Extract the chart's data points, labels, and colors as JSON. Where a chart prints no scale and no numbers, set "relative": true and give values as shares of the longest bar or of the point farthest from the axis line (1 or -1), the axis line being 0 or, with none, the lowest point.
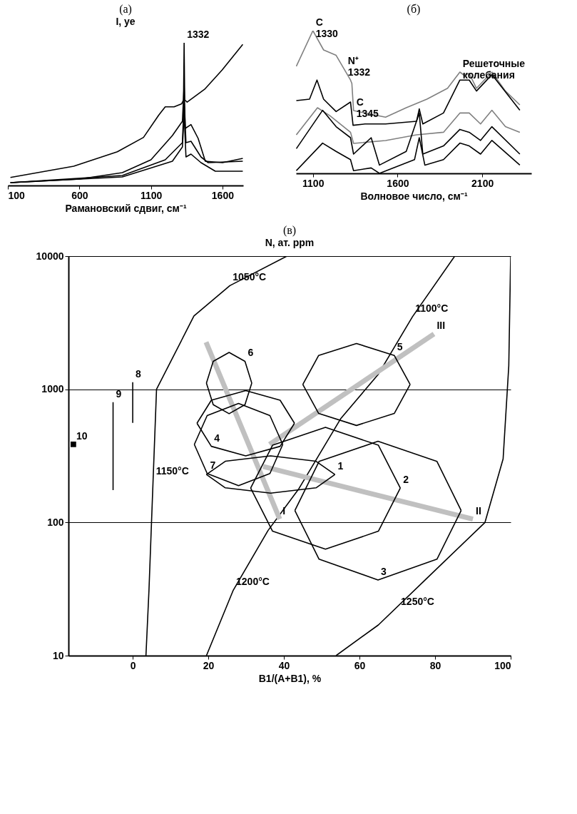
{
  "chart_data": [
    {
      "type": "line",
      "title": "(a)",
      "xlabel": "Рамановский сдвиг, см⁻¹",
      "ylabel": "I, ye",
      "relative": true,
      "xlim": [
        100,
        1745
      ],
      "xticks": [
        100,
        600,
        1100,
        1600
      ],
      "annotations": [
        {
          "text": "1332",
          "x": 1332,
          "y": 1.0
        }
      ],
      "series": [
        {
          "color": "#000000",
          "x": [
            118,
            560,
            865,
            1048,
            1155,
            1200,
            1262,
            1315,
            1328,
            1332,
            1336,
            1353,
            1475,
            1597,
            1742
          ],
          "values": [
            0.056,
            0.135,
            0.236,
            0.337,
            0.494,
            0.551,
            0.551,
            0.573,
            0.6,
            1.0,
            0.6,
            0.584,
            0.674,
            0.809,
            0.989
          ]
        },
        {
          "color": "#000000",
          "x": [
            118,
            600,
            900,
            1100,
            1250,
            1320,
            1332,
            1340,
            1380,
            1430,
            1480,
            1600,
            1742
          ],
          "values": [
            0.02,
            0.045,
            0.09,
            0.18,
            0.35,
            0.45,
            0.7,
            0.4,
            0.427,
            0.33,
            0.17,
            0.16,
            0.19
          ]
        },
        {
          "color": "#000000",
          "x": [
            118,
            900,
            1200,
            1320,
            1332,
            1345,
            1380,
            1450,
            1500,
            1742
          ],
          "values": [
            0.02,
            0.07,
            0.18,
            0.3,
            0.6,
            0.3,
            0.31,
            0.2,
            0.16,
            0.17
          ]
        },
        {
          "color": "#000000",
          "x": [
            118,
            900,
            1250,
            1320,
            1332,
            1345,
            1380,
            1450,
            1550,
            1742
          ],
          "values": [
            0.02,
            0.06,
            0.17,
            0.27,
            0.5,
            0.2,
            0.22,
            0.16,
            0.1,
            0.1
          ]
        }
      ]
    },
    {
      "type": "line",
      "title": "(б)",
      "xlabel": "Волновое число, см⁻¹",
      "relative": true,
      "xlim": [
        1000,
        2390
      ],
      "xticks": [
        1100,
        1600,
        2100
      ],
      "annotations": [
        {
          "text": "C 1330",
          "x": 1100,
          "y": 1.0
        },
        {
          "text": "N⁺ 1332",
          "x": 1290,
          "y": 0.73
        },
        {
          "text": "C 1345",
          "x": 1340,
          "y": 0.44
        },
        {
          "text": "Решеточные колебания",
          "x": 1968,
          "y": 0.71
        }
      ],
      "series": [
        {
          "color": "#808080",
          "x": [
            1002,
            1100,
            1163,
            1237,
            1322,
            1330,
            1340,
            1407,
            1529,
            1651,
            1773,
            1895,
            1968,
            1990,
            2023,
            2066,
            2157,
            2237,
            2322
          ],
          "values": [
            0.75,
            1.0,
            0.865,
            0.827,
            0.654,
            0.63,
            0.44,
            0.423,
            0.394,
            0.46,
            0.52,
            0.596,
            0.71,
            0.69,
            0.7,
            0.596,
            0.71,
            0.577,
            0.48
          ]
        },
        {
          "color": "#000000",
          "x": [
            1002,
            1080,
            1124,
            1163,
            1237,
            1322,
            1337,
            1407,
            1529,
            1712,
            1728,
            1749,
            1871,
            1968,
            2023,
            2066,
            2157,
            2322
          ],
          "values": [
            0.51,
            0.52,
            0.654,
            0.52,
            0.433,
            0.5,
            0.337,
            0.346,
            0.346,
            0.365,
            0.452,
            0.346,
            0.423,
            0.654,
            0.654,
            0.577,
            0.692,
            0.442
          ]
        },
        {
          "color": "#808080",
          "x": [
            1002,
            1127,
            1200,
            1322,
            1340,
            1529,
            1712,
            1871,
            1968,
            2023,
            2090,
            2157,
            2237,
            2322
          ],
          "values": [
            0.27,
            0.46,
            0.404,
            0.288,
            0.21,
            0.23,
            0.27,
            0.288,
            0.423,
            0.423,
            0.346,
            0.442,
            0.327,
            0.288
          ]
        },
        {
          "color": "#000000",
          "x": [
            1002,
            1157,
            1237,
            1322,
            1340,
            1444,
            1493,
            1651,
            1728,
            1749,
            1871,
            1968,
            2023,
            2090,
            2157,
            2322
          ],
          "values": [
            0.173,
            0.442,
            0.327,
            0.25,
            0.135,
            0.25,
            0.058,
            0.154,
            0.423,
            0.135,
            0.192,
            0.308,
            0.288,
            0.231,
            0.327,
            0.135
          ]
        },
        {
          "color": "#000000",
          "x": [
            1002,
            1157,
            1237,
            1322,
            1340,
            1444,
            1493,
            1700,
            1728,
            1761,
            1871,
            1968,
            2023,
            2090,
            2157,
            2322
          ],
          "values": [
            0.019,
            0.212,
            0.154,
            0.096,
            0.019,
            0.038,
            0.0,
            0.096,
            0.25,
            0.058,
            0.096,
            0.212,
            0.192,
            0.135,
            0.231,
            0.058
          ]
        }
      ]
    },
    {
      "type": "line",
      "title": "(в)",
      "xlabel": "B1/(A+B1), %",
      "ylabel": "N, ат. ppm",
      "log": true,
      "grid": "y",
      "xlim": [
        -17,
        100
      ],
      "xticks": [
        0,
        20,
        40,
        60,
        80,
        100
      ],
      "ylim": [
        10,
        10000
      ],
      "yticks": [
        10,
        100,
        1000,
        10000
      ],
      "annotations": [
        {
          "text": "1050°C",
          "x": 25.7,
          "y": 6000
        },
        {
          "text": "1100°C",
          "x": 74,
          "y": 3500
        },
        {
          "text": "1150°C",
          "x": 5.4,
          "y": 211
        },
        {
          "text": "1200°C",
          "x": 26.6,
          "y": 31
        },
        {
          "text": "1250°C",
          "x": 70.2,
          "y": 22
        },
        {
          "text": "1",
          "x": 53.5,
          "y": 229
        },
        {
          "text": "2",
          "x": 70.8,
          "y": 181
        },
        {
          "text": "3",
          "x": 64.9,
          "y": 37
        },
        {
          "text": "4",
          "x": 20.8,
          "y": 373
        },
        {
          "text": "5",
          "x": 69.2,
          "y": 1795
        },
        {
          "text": "6",
          "x": 29.7,
          "y": 1622
        },
        {
          "text": "7",
          "x": 19.7,
          "y": 233
        },
        {
          "text": "8",
          "x": 0,
          "y": 1130
        },
        {
          "text": "9",
          "x": -5.2,
          "y": 800
        },
        {
          "text": "10",
          "x": -15.7,
          "y": 386
        },
        {
          "text": "I",
          "x": 38.9,
          "y": 106
        },
        {
          "text": "II",
          "x": 90,
          "y": 106
        },
        {
          "text": "III",
          "x": 79.7,
          "y": 2600
        }
      ],
      "series": [
        {
          "color": "#000000",
          "x": [
            3.5,
            4.3,
            5.4,
            6.3,
            16.2,
            25.7,
            40.8
          ],
          "values": [
            10,
            31,
            211,
            1000,
            3550,
            6000,
            10000
          ]
        },
        {
          "color": "#000000",
          "x": [
            19.5,
            26.6,
            35.8,
            44,
            55,
            65,
            74,
            85.2
          ],
          "values": [
            10,
            31,
            87,
            180,
            600,
            1300,
            3500,
            10000
          ]
        },
        {
          "color": "#000000",
          "x": [
            53.8,
            65,
            79,
            93.2,
            98,
            99.5,
            100
          ],
          "values": [
            10,
            17,
            41,
            100,
            300,
            1500,
            10000
          ]
        },
        {
          "color": "#c0c0c0",
          "x": [
            19.4,
            38.9
          ],
          "values": [
            2260,
            106
          ]
        },
        {
          "color": "#c0c0c0",
          "x": [
            34.5,
            90
          ],
          "values": [
            263,
            106
          ]
        },
        {
          "color": "#c0c0c0",
          "x": [
            36.2,
            79.7
          ],
          "values": [
            386,
            2600
          ]
        },
        {
          "color": "#000000",
          "x": [
            19.5,
            24.5,
            36.5,
            48.5,
            53.5
          ],
          "values": [
            229,
            288,
            316,
            288,
            229
          ]
        },
        {
          "color": "#000000",
          "x": [
            19.5,
            24.5,
            36.5,
            48.5,
            53.5
          ],
          "values": [
            229,
            182,
            166,
            182,
            229
          ]
        },
        {
          "color": "#000000",
          "x": [
            31.2,
            37,
            51,
            65,
            70.8
          ],
          "values": [
            181,
            380,
            518,
            380,
            181
          ]
        },
        {
          "color": "#000000",
          "x": [
            31.2,
            37,
            51,
            65,
            70.8
          ],
          "values": [
            181,
            86,
            63,
            86,
            181
          ]
        },
        {
          "color": "#000000",
          "x": [
            42.9,
            49.3,
            64.9,
            80.5,
            86.9
          ],
          "values": [
            123,
            287,
            407,
            287,
            123
          ]
        },
        {
          "color": "#000000",
          "x": [
            42.9,
            49.3,
            64.9,
            80.5,
            86.9
          ],
          "values": [
            123,
            53,
            37,
            53,
            123
          ]
        },
        {
          "color": "#000000",
          "x": [
            17,
            20.8,
            29.9,
            39,
            42.8
          ],
          "values": [
            556,
            828,
            977,
            828,
            556
          ]
        },
        {
          "color": "#000000",
          "x": [
            17,
            20.8,
            29.9,
            39,
            42.8
          ],
          "values": [
            556,
            373,
            316,
            373,
            556
          ]
        },
        {
          "color": "#000000",
          "x": [
            45,
            49.2,
            59.2,
            69.2,
            73.4
          ],
          "values": [
            1086,
            1795,
            2208,
            1795,
            1086
          ]
        },
        {
          "color": "#000000",
          "x": [
            45,
            49.2,
            59.2,
            69.2,
            73.4
          ],
          "values": [
            1086,
            658,
            535,
            658,
            1086
          ]
        },
        {
          "color": "#000000",
          "x": [
            19.5,
            21.3,
            25.5,
            29.7,
            31.5
          ],
          "values": [
            1114,
            1622,
            1892,
            1622,
            1114
          ]
        },
        {
          "color": "#000000",
          "x": [
            19.5,
            21.3,
            25.5,
            29.7,
            31.5
          ],
          "values": [
            1114,
            766,
            656,
            766,
            1114
          ]
        },
        {
          "color": "#000000",
          "x": [
            16.3,
            19.7,
            28,
            36.3,
            39.7
          ],
          "values": [
            385,
            635,
            782,
            635,
            385
          ]
        },
        {
          "color": "#000000",
          "x": [
            16.3,
            19.7,
            28,
            36.3,
            39.7
          ],
          "values": [
            385,
            233,
            189,
            233,
            385
          ]
        },
        {
          "color": "#000000",
          "x": [
            0,
            0
          ],
          "values": [
            1130,
            560
          ]
        },
        {
          "color": "#000000",
          "x": [
            -5.2,
            -5.2
          ],
          "values": [
            800,
            175
          ]
        },
        {
          "type": "scatter",
          "marker": "square",
          "color": "#000000",
          "x": [
            -15.7
          ],
          "values": [
            386
          ]
        }
      ]
    }
  ]
}
